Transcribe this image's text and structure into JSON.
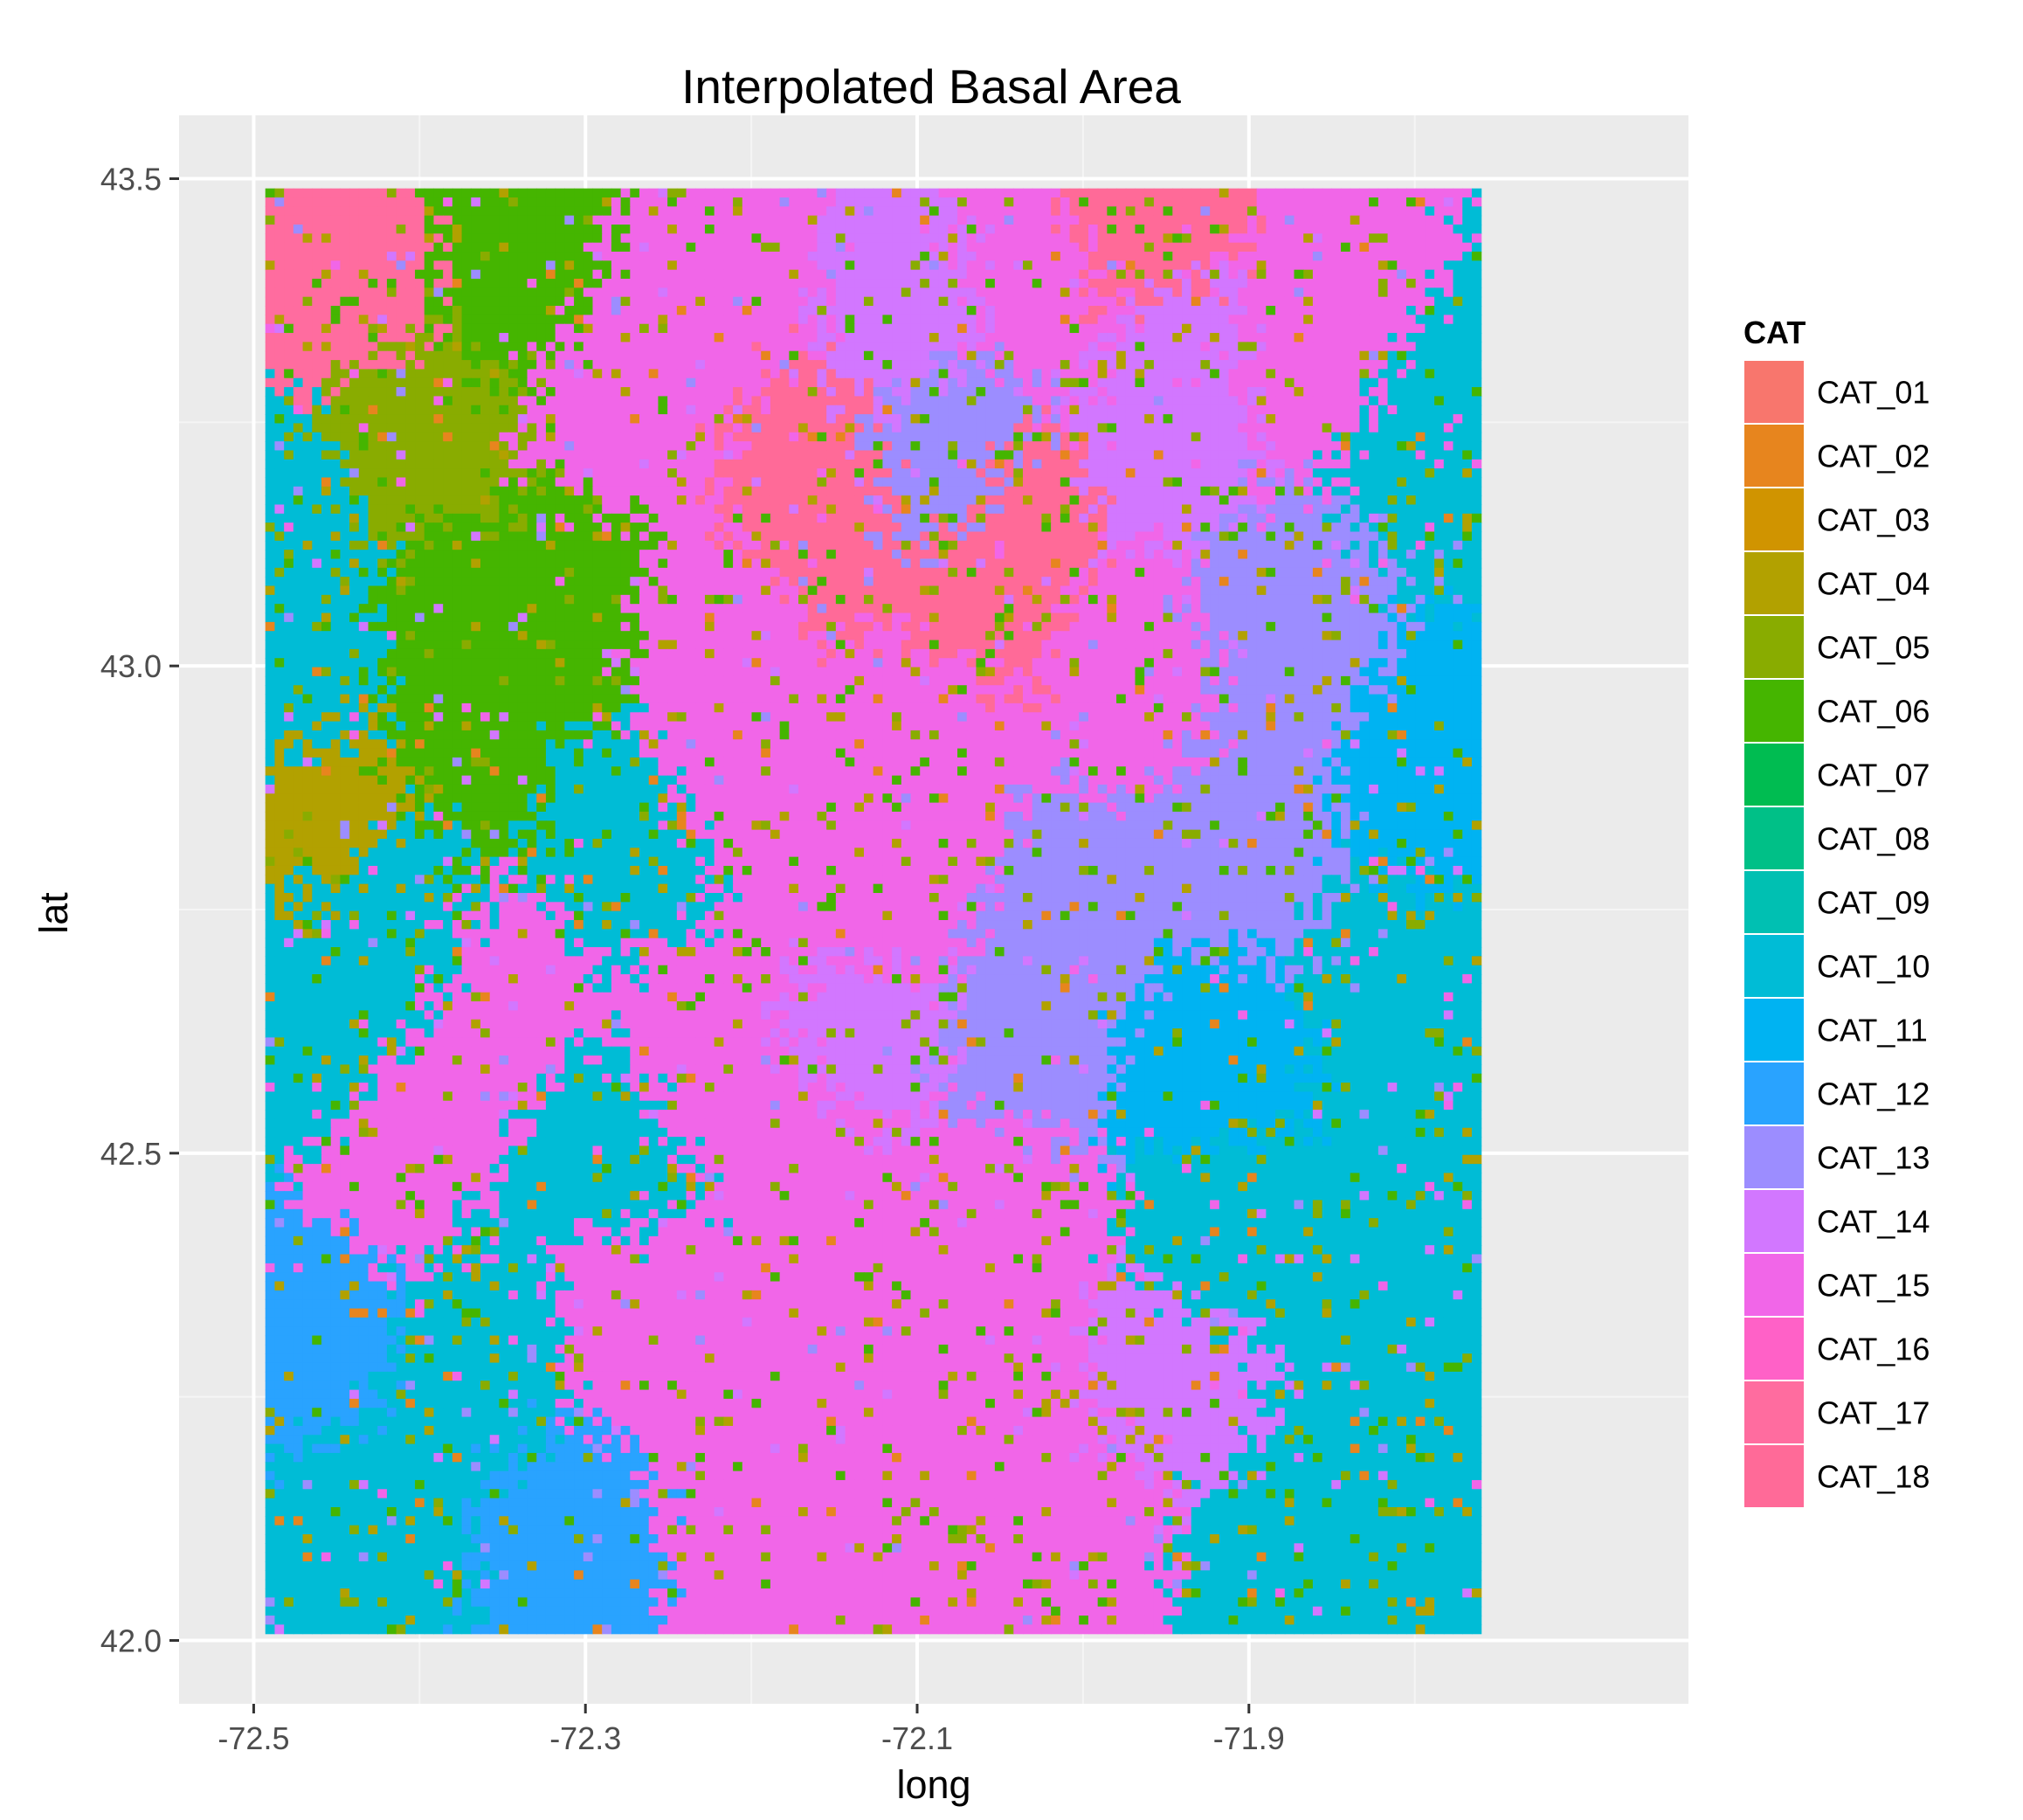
{
  "chart_data": {
    "type": "heatmap",
    "title": "Interpolated Basal Area",
    "xlabel": "long",
    "ylabel": "lat",
    "xlim": [
      -72.545,
      -71.635
    ],
    "ylim": [
      41.935,
      43.565
    ],
    "x_ticks": [
      -72.5,
      -72.3,
      -72.1,
      -71.9
    ],
    "x_tick_labels": [
      "-72.5",
      "-72.3",
      "-72.1",
      "-71.9"
    ],
    "x_minor_ticks": [
      -72.4,
      -72.2,
      -72.0,
      -71.8
    ],
    "y_ticks": [
      42.0,
      42.5,
      43.0,
      43.5
    ],
    "y_tick_labels": [
      "42.0",
      "42.5",
      "43.0",
      "43.5"
    ],
    "y_minor_ticks": [
      42.25,
      42.75,
      43.25
    ],
    "grid": true,
    "raster_extent": {
      "x": [
        -72.493,
        -71.76
      ],
      "y": [
        42.007,
        43.49
      ]
    },
    "raster_note": "Dense categorical grid; values are spatially clustered patches of the categories listed in the legend.",
    "legend": {
      "title": "CAT",
      "position": "right",
      "entries": [
        {
          "label": "CAT_01",
          "color": "#F8766D"
        },
        {
          "label": "CAT_02",
          "color": "#E7851E"
        },
        {
          "label": "CAT_03",
          "color": "#D09400"
        },
        {
          "label": "CAT_04",
          "color": "#B2A100"
        },
        {
          "label": "CAT_05",
          "color": "#89AC00"
        },
        {
          "label": "CAT_06",
          "color": "#45B500"
        },
        {
          "label": "CAT_07",
          "color": "#00BC51"
        },
        {
          "label": "CAT_08",
          "color": "#00C087"
        },
        {
          "label": "CAT_09",
          "color": "#00C0B2"
        },
        {
          "label": "CAT_10",
          "color": "#00BCD6"
        },
        {
          "label": "CAT_11",
          "color": "#00B3F2"
        },
        {
          "label": "CAT_12",
          "color": "#29A3FF"
        },
        {
          "label": "CAT_13",
          "color": "#9C8DFF"
        },
        {
          "label": "CAT_14",
          "color": "#D277FF"
        },
        {
          "label": "CAT_15",
          "color": "#F166E8"
        },
        {
          "label": "CAT_16",
          "color": "#FF61C7"
        },
        {
          "label": "CAT_17",
          "color": "#FF6C9F"
        },
        {
          "label": "CAT_18",
          "color": "#FF6A98"
        }
      ]
    }
  },
  "colors": {
    "panel_background": "#EBEBEB",
    "grid_major": "#FFFFFF",
    "grid_minor": "#F5F5F5"
  }
}
